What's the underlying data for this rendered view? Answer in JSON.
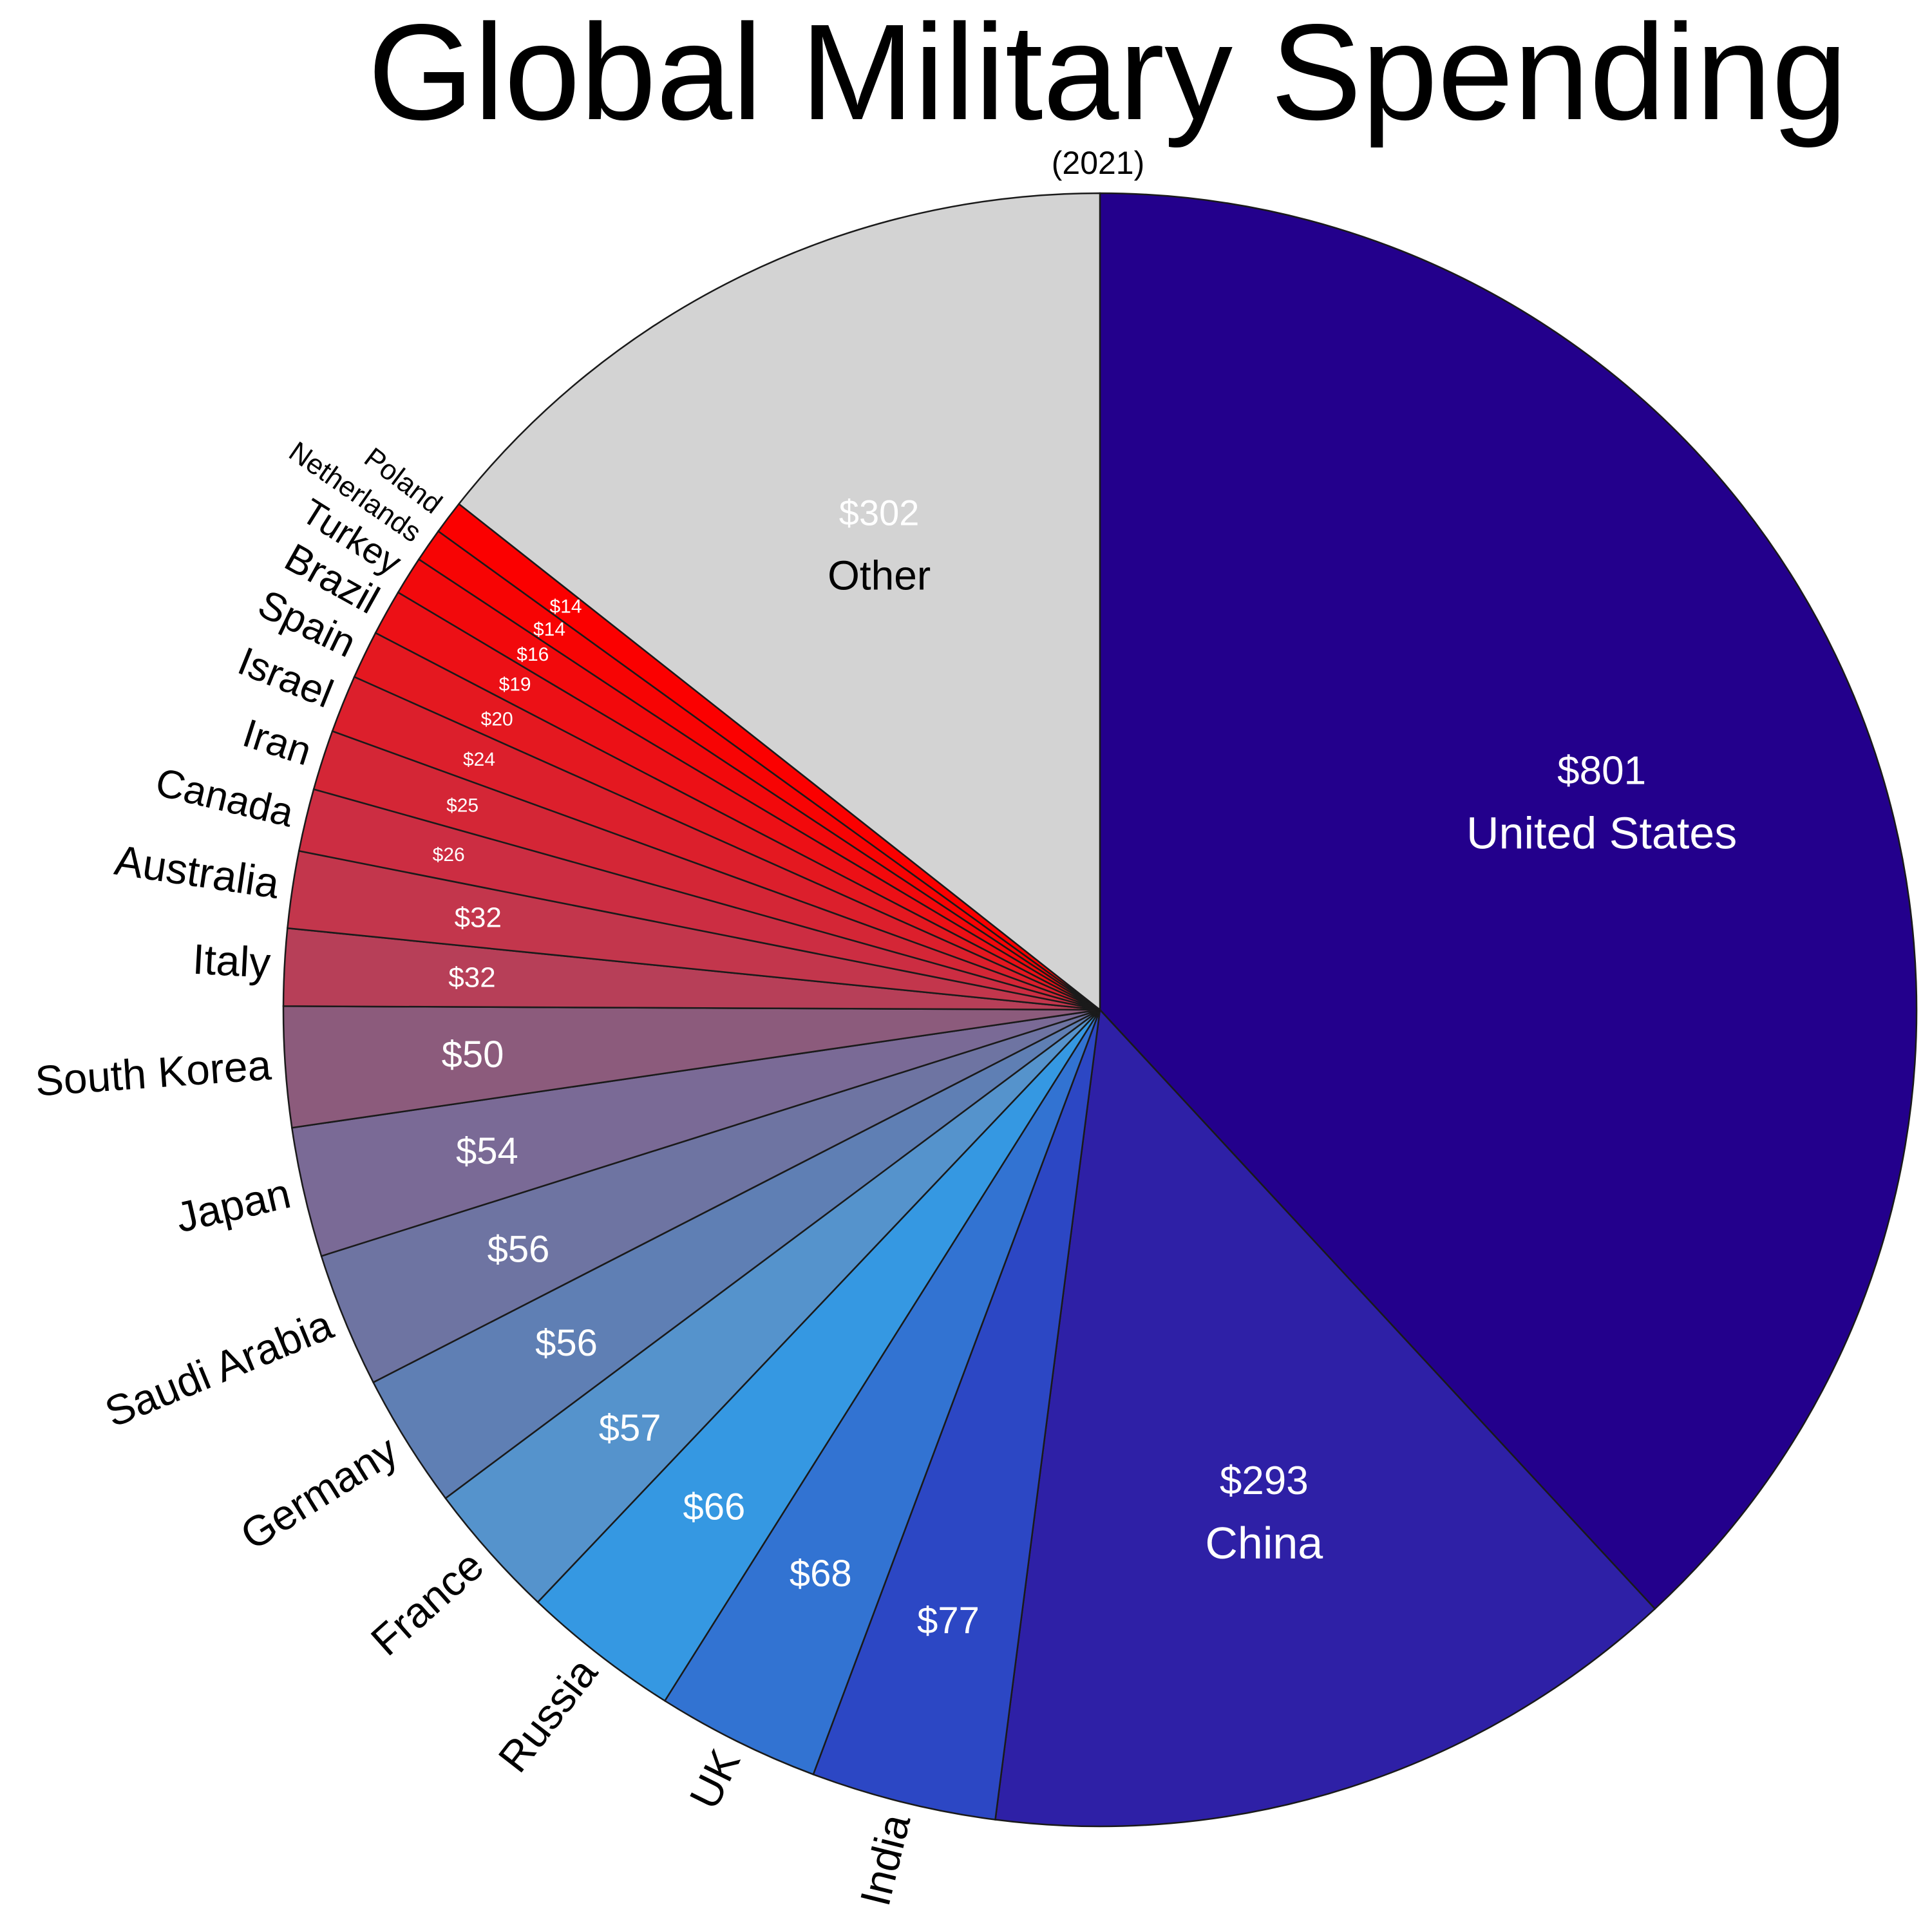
{
  "chart_data": {
    "type": "pie",
    "title": "Global Military Spending",
    "subtitle": "(2021)",
    "start": "12 o'clock",
    "direction": "clockwise",
    "slices": [
      {
        "label": "United States",
        "value": 801,
        "value_label": "$801",
        "color": "#23008c"
      },
      {
        "label": "China",
        "value": 293,
        "value_label": "$293",
        "color": "#2e20a6"
      },
      {
        "label": "India",
        "value": 77,
        "value_label": "$77",
        "color": "#2c47c4"
      },
      {
        "label": "UK",
        "value": 68,
        "value_label": "$68",
        "color": "#3273d2"
      },
      {
        "label": "Russia",
        "value": 66,
        "value_label": "$66",
        "color": "#3598e2"
      },
      {
        "label": "France",
        "value": 57,
        "value_label": "$57",
        "color": "#5593cc"
      },
      {
        "label": "Germany",
        "value": 56,
        "value_label": "$56",
        "color": "#5f7fb4"
      },
      {
        "label": "Saudi Arabia",
        "value": 56,
        "value_label": "$56",
        "color": "#6e74a2"
      },
      {
        "label": "Japan",
        "value": 54,
        "value_label": "$54",
        "color": "#7a6a96"
      },
      {
        "label": "South Korea",
        "value": 50,
        "value_label": "$50",
        "color": "#8c5b7c"
      },
      {
        "label": "Italy",
        "value": 32,
        "value_label": "$32",
        "color": "#b73f58"
      },
      {
        "label": "Australia",
        "value": 32,
        "value_label": "$32",
        "color": "#c3364c"
      },
      {
        "label": "Canada",
        "value": 26,
        "value_label": "$26",
        "color": "#cc2d42"
      },
      {
        "label": "Iran",
        "value": 25,
        "value_label": "$25",
        "color": "#d42636"
      },
      {
        "label": "Israel",
        "value": 24,
        "value_label": "$24",
        "color": "#dc1f2c"
      },
      {
        "label": "Spain",
        "value": 20,
        "value_label": "$20",
        "color": "#e41820"
      },
      {
        "label": "Brazil",
        "value": 19,
        "value_label": "$19",
        "color": "#ec1016"
      },
      {
        "label": "Turkey",
        "value": 16,
        "value_label": "$16",
        "color": "#f2090c"
      },
      {
        "label": "Netherlands",
        "value": 14,
        "value_label": "$14",
        "color": "#f70404"
      },
      {
        "label": "Poland",
        "value": 14,
        "value_label": "$14",
        "color": "#fb0000"
      },
      {
        "label": "Other",
        "value": 302,
        "value_label": "$302",
        "color": "#d3d3d3"
      }
    ]
  }
}
